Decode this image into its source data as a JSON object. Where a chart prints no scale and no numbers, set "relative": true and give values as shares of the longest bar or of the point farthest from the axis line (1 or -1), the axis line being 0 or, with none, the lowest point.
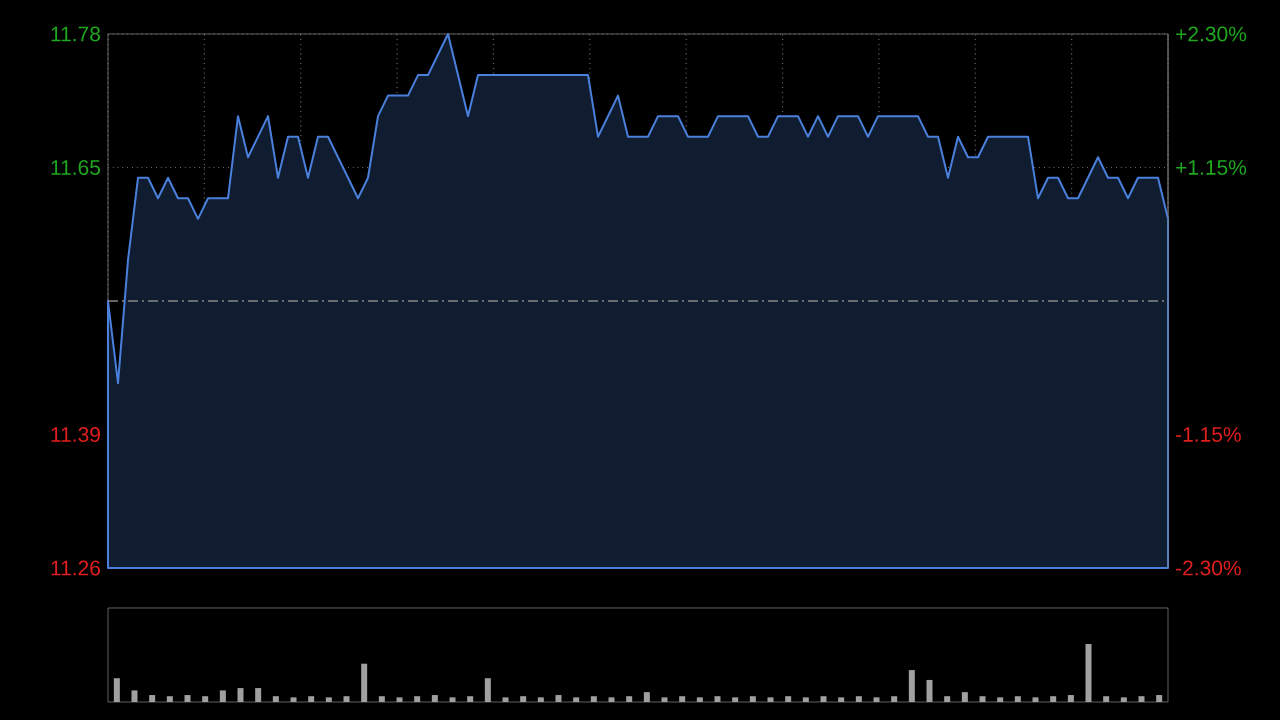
{
  "chart_data": [
    {
      "type": "area",
      "color": "#4a80dc",
      "grid": true,
      "categories": [
        null,
        null,
        null,
        null,
        null,
        null,
        null,
        null,
        null,
        null,
        null,
        null,
        null,
        null,
        null,
        null,
        null,
        null,
        null,
        null,
        null,
        null,
        null,
        null,
        null,
        null,
        null,
        null,
        null,
        null,
        null,
        null,
        null,
        null,
        null,
        null,
        null,
        null,
        null,
        null,
        null,
        null,
        null,
        null,
        null,
        null,
        null,
        null,
        null,
        null,
        null,
        null,
        null,
        null,
        null,
        null,
        null,
        null,
        null,
        null,
        null,
        null,
        null,
        null,
        null,
        null,
        null,
        null,
        null,
        null,
        null,
        null,
        null,
        null,
        null,
        null,
        null,
        null,
        null,
        null,
        null,
        null,
        null,
        null,
        null,
        null,
        null,
        null,
        null,
        null,
        null,
        null,
        null,
        null,
        null,
        null,
        null,
        null,
        null,
        null,
        null,
        null,
        null,
        null,
        null,
        null,
        null
      ],
      "values": [
        11.52,
        11.44,
        11.56,
        11.64,
        11.64,
        11.62,
        11.64,
        11.62,
        11.62,
        11.6,
        11.62,
        11.62,
        11.62,
        11.7,
        11.66,
        11.68,
        11.7,
        11.64,
        11.68,
        11.68,
        11.64,
        11.68,
        11.68,
        11.66,
        11.64,
        11.62,
        11.64,
        11.7,
        11.72,
        11.72,
        11.72,
        11.74,
        11.74,
        11.76,
        11.78,
        11.74,
        11.7,
        11.74,
        11.74,
        11.74,
        11.74,
        11.74,
        11.74,
        11.74,
        11.74,
        11.74,
        11.74,
        11.74,
        11.74,
        11.68,
        11.7,
        11.72,
        11.68,
        11.68,
        11.68,
        11.7,
        11.7,
        11.7,
        11.68,
        11.68,
        11.68,
        11.7,
        11.7,
        11.7,
        11.7,
        11.68,
        11.68,
        11.7,
        11.7,
        11.7,
        11.68,
        11.7,
        11.68,
        11.7,
        11.7,
        11.7,
        11.68,
        11.7,
        11.7,
        11.7,
        11.7,
        11.7,
        11.68,
        11.68,
        11.64,
        11.68,
        11.66,
        11.66,
        11.68,
        11.68,
        11.68,
        11.68,
        11.68,
        11.62,
        11.64,
        11.64,
        11.62,
        11.62,
        11.64,
        11.66,
        11.64,
        11.64,
        11.62,
        11.64,
        11.64,
        11.64,
        11.6
      ],
      "ylim": [
        11.26,
        11.78
      ],
      "yticks": [
        11.26,
        11.39,
        11.65,
        11.78
      ],
      "y2lim": [
        -2.3,
        2.3
      ],
      "y2ticks": [
        {
          "value": -2.3,
          "label": "-2.30%"
        },
        {
          "value": -1.15,
          "label": "-1.15%"
        },
        {
          "value": 1.15,
          "label": "+1.15%"
        },
        {
          "value": 2.3,
          "label": "+2.30%"
        }
      ],
      "ref_lines": [
        {
          "axis": "y",
          "value": 11.52,
          "line_style": "dashed"
        }
      ]
    },
    {
      "type": "bar",
      "relative": true,
      "color": "#a0a0a0",
      "categories": [
        null,
        null,
        null,
        null,
        null,
        null,
        null,
        null,
        null,
        null,
        null,
        null,
        null,
        null,
        null,
        null,
        null,
        null,
        null,
        null,
        null,
        null,
        null,
        null,
        null,
        null,
        null,
        null,
        null,
        null,
        null,
        null,
        null,
        null,
        null,
        null,
        null,
        null,
        null,
        null,
        null,
        null,
        null,
        null,
        null,
        null,
        null,
        null,
        null,
        null,
        null,
        null,
        null,
        null,
        null,
        null,
        null,
        null,
        null,
        null
      ],
      "values": [
        0.41,
        0.2,
        0.12,
        0.1,
        0.12,
        0.1,
        0.2,
        0.24,
        0.24,
        0.1,
        0.08,
        0.1,
        0.08,
        0.1,
        0.66,
        0.1,
        0.08,
        0.1,
        0.12,
        0.08,
        0.1,
        0.41,
        0.08,
        0.1,
        0.08,
        0.12,
        0.08,
        0.1,
        0.08,
        0.1,
        0.17,
        0.08,
        0.1,
        0.08,
        0.1,
        0.08,
        0.1,
        0.08,
        0.1,
        0.08,
        0.1,
        0.08,
        0.1,
        0.08,
        0.1,
        0.55,
        0.38,
        0.1,
        0.17,
        0.1,
        0.08,
        0.1,
        0.08,
        0.1,
        0.12,
        1.0,
        0.1,
        0.08,
        0.1,
        0.12
      ]
    }
  ]
}
